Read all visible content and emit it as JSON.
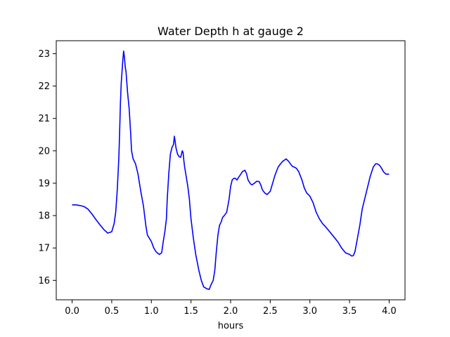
{
  "chart_data": {
    "type": "line",
    "title": "Water Depth h at gauge 2",
    "xlabel": "hours",
    "ylabel": "",
    "xlim": [
      -0.2,
      4.2
    ],
    "ylim": [
      15.4,
      23.4
    ],
    "xticks": [
      0.0,
      0.5,
      1.0,
      1.5,
      2.0,
      2.5,
      3.0,
      3.5,
      4.0
    ],
    "xtick_labels": [
      "0.0",
      "0.5",
      "1.0",
      "1.5",
      "2.0",
      "2.5",
      "3.0",
      "3.5",
      "4.0"
    ],
    "yticks": [
      16,
      17,
      18,
      19,
      20,
      21,
      22,
      23
    ],
    "ytick_labels": [
      "16",
      "17",
      "18",
      "19",
      "20",
      "21",
      "22",
      "23"
    ],
    "grid": false,
    "series": [
      {
        "color": "#0000ff",
        "x": [
          0.0,
          0.05,
          0.1,
          0.15,
          0.2,
          0.25,
          0.3,
          0.35,
          0.4,
          0.45,
          0.5,
          0.53,
          0.55,
          0.57,
          0.59,
          0.6,
          0.61,
          0.62,
          0.64,
          0.65,
          0.66,
          0.67,
          0.68,
          0.7,
          0.72,
          0.74,
          0.75,
          0.77,
          0.8,
          0.83,
          0.85,
          0.87,
          0.9,
          0.93,
          0.95,
          0.98,
          1.0,
          1.03,
          1.06,
          1.1,
          1.13,
          1.15,
          1.17,
          1.19,
          1.2,
          1.22,
          1.24,
          1.26,
          1.28,
          1.29,
          1.3,
          1.31,
          1.32,
          1.33,
          1.35,
          1.37,
          1.39,
          1.4,
          1.41,
          1.42,
          1.44,
          1.46,
          1.48,
          1.5,
          1.53,
          1.56,
          1.6,
          1.63,
          1.66,
          1.7,
          1.73,
          1.75,
          1.78,
          1.8,
          1.82,
          1.84,
          1.86,
          1.88,
          1.9,
          1.92,
          1.95,
          1.98,
          2.0,
          2.02,
          2.04,
          2.06,
          2.08,
          2.1,
          2.12,
          2.15,
          2.18,
          2.2,
          2.22,
          2.25,
          2.27,
          2.3,
          2.33,
          2.36,
          2.38,
          2.4,
          2.43,
          2.46,
          2.5,
          2.53,
          2.56,
          2.6,
          2.63,
          2.66,
          2.7,
          2.73,
          2.76,
          2.78,
          2.8,
          2.83,
          2.86,
          2.9,
          2.93,
          2.96,
          3.0,
          3.04,
          3.08,
          3.12,
          3.16,
          3.2,
          3.25,
          3.3,
          3.35,
          3.4,
          3.45,
          3.5,
          3.53,
          3.55,
          3.57,
          3.6,
          3.63,
          3.66,
          3.7,
          3.73,
          3.76,
          3.8,
          3.83,
          3.85,
          3.88,
          3.9,
          3.93,
          3.96,
          4.0
        ],
        "y": [
          18.33,
          18.33,
          18.31,
          18.28,
          18.2,
          18.05,
          17.88,
          17.72,
          17.57,
          17.46,
          17.5,
          17.75,
          18.1,
          18.8,
          19.8,
          20.6,
          21.5,
          22.1,
          22.8,
          23.08,
          22.9,
          22.6,
          22.45,
          21.8,
          21.3,
          20.5,
          20.0,
          19.75,
          19.6,
          19.3,
          19.0,
          18.7,
          18.3,
          17.7,
          17.4,
          17.28,
          17.2,
          17.0,
          16.88,
          16.8,
          16.85,
          17.2,
          17.5,
          17.9,
          18.5,
          19.3,
          19.9,
          20.1,
          20.2,
          20.45,
          20.3,
          20.1,
          20.0,
          19.9,
          19.82,
          19.8,
          20.0,
          19.95,
          19.7,
          19.5,
          19.2,
          18.9,
          18.5,
          17.9,
          17.3,
          16.8,
          16.3,
          16.0,
          15.8,
          15.74,
          15.72,
          15.85,
          16.0,
          16.3,
          16.9,
          17.4,
          17.7,
          17.8,
          17.95,
          18.0,
          18.1,
          18.5,
          18.9,
          19.1,
          19.15,
          19.15,
          19.1,
          19.18,
          19.25,
          19.36,
          19.4,
          19.3,
          19.1,
          18.98,
          18.95,
          19.0,
          19.06,
          19.05,
          18.95,
          18.8,
          18.7,
          18.65,
          18.75,
          19.0,
          19.25,
          19.5,
          19.6,
          19.68,
          19.75,
          19.68,
          19.58,
          19.52,
          19.5,
          19.46,
          19.35,
          19.1,
          18.85,
          18.7,
          18.6,
          18.4,
          18.1,
          17.9,
          17.75,
          17.65,
          17.5,
          17.35,
          17.2,
          17.0,
          16.85,
          16.8,
          16.75,
          16.77,
          16.9,
          17.3,
          17.7,
          18.2,
          18.6,
          18.9,
          19.2,
          19.5,
          19.6,
          19.6,
          19.55,
          19.48,
          19.35,
          19.28,
          19.28
        ]
      }
    ]
  }
}
